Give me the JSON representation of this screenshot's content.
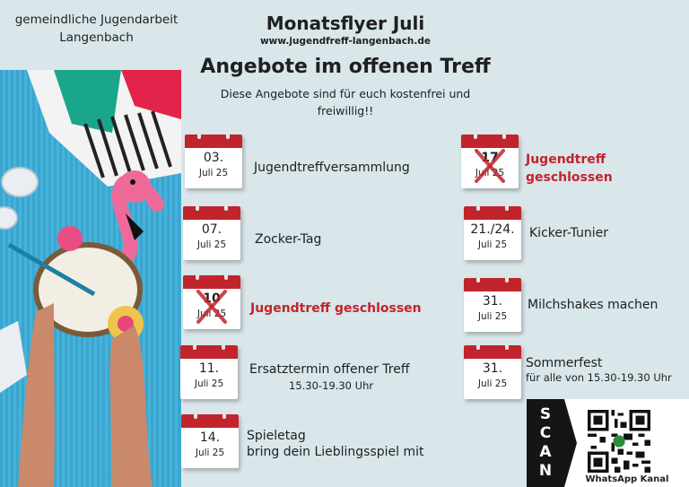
{
  "header": {
    "org": "gemeindliche Jugendarbeit\nLangenbach",
    "title": "Monatsflyer Juli",
    "url": "www.jugendfreff-langenbach.de",
    "headline": "Angebote im offenen Treff",
    "subline": "Diese Angebote sind für euch kostenfrei und freiwillig!!"
  },
  "events_left": [
    {
      "day": "03.",
      "month": "Juli 25",
      "label": "Jugendtreffversammlung"
    },
    {
      "day": "07.",
      "month": "Juli 25",
      "label": "Zocker-Tag"
    },
    {
      "day": "10",
      "month": "Juli 25",
      "label": "Jugendtreff geschlossen"
    },
    {
      "day": "11.",
      "month": "Juli 25",
      "label": "Ersatztermin offener Treff",
      "sub": "15.30-19.30 Uhr"
    },
    {
      "day": "14.",
      "month": "Juli 25",
      "label": "Spieletag",
      "sub": "bring dein Lieblingsspiel mit"
    }
  ],
  "events_right": [
    {
      "day": "17",
      "month": "Juli 25",
      "label": "Jugendtreff geschlossen"
    },
    {
      "day": "21./24.",
      "month": "Juli 25",
      "label": "Kicker-Tunier"
    },
    {
      "day": "31.",
      "month": "Juli 25",
      "label": "Milchshakes machen"
    },
    {
      "day": "31.",
      "month": "Juli 25",
      "label": "Sommerfest",
      "sub": "für alle von 15.30-19.30 Uhr"
    }
  ],
  "scan": {
    "letters": [
      "S",
      "C",
      "A",
      "N"
    ],
    "label": "WhatsApp Kanal"
  },
  "colors": {
    "accent": "#c1242c",
    "background": "#d9e6ea"
  }
}
